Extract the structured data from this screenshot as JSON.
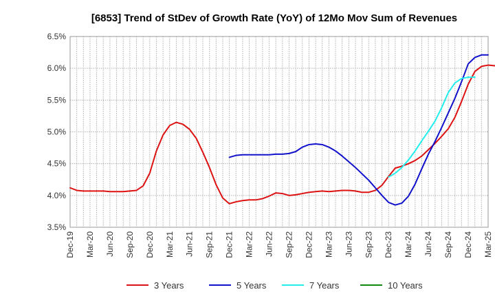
{
  "chart_data": {
    "type": "line",
    "title": "[6853]  Trend of StDev of Growth Rate (YoY) of 12Mo Mov Sum of Revenues",
    "xlabel": "",
    "ylabel": "",
    "ylim": [
      3.5,
      6.5
    ],
    "yticks": [
      "3.5%",
      "4.0%",
      "4.5%",
      "5.0%",
      "5.5%",
      "6.0%",
      "6.5%"
    ],
    "ytick_values": [
      3.5,
      4.0,
      4.5,
      5.0,
      5.5,
      6.0,
      6.5
    ],
    "xticks": [
      "Dec-19",
      "Mar-20",
      "Jun-20",
      "Sep-20",
      "Dec-20",
      "Mar-21",
      "Jun-21",
      "Sep-21",
      "Dec-21",
      "Mar-22",
      "Jun-22",
      "Sep-22",
      "Dec-22",
      "Mar-23",
      "Jun-23",
      "Sep-23",
      "Dec-23",
      "Mar-24",
      "Jun-24",
      "Sep-24",
      "Dec-24",
      "Mar-25"
    ],
    "x_start_month_index": 0,
    "grid": true,
    "legend_position": "bottom",
    "series": [
      {
        "name": "3 Years",
        "color": "#dd1111",
        "start": 0,
        "values": [
          4.12,
          4.08,
          4.07,
          4.07,
          4.07,
          4.07,
          4.06,
          4.06,
          4.06,
          4.07,
          4.08,
          4.15,
          4.35,
          4.7,
          4.95,
          5.1,
          5.15,
          5.12,
          5.04,
          4.9,
          4.68,
          4.44,
          4.17,
          3.96,
          3.87,
          3.9,
          3.92,
          3.93,
          3.93,
          3.95,
          3.99,
          4.04,
          4.03,
          4.0,
          4.01,
          4.03,
          4.05,
          4.06,
          4.07,
          4.06,
          4.07,
          4.08,
          4.08,
          4.07,
          4.05,
          4.05,
          4.08,
          4.16,
          4.3,
          4.43,
          4.46,
          4.5,
          4.55,
          4.62,
          4.72,
          4.82,
          4.93,
          5.05,
          5.23,
          5.48,
          5.75,
          5.95,
          6.03,
          6.05,
          6.04
        ]
      },
      {
        "name": "5 Years",
        "color": "#1111cc",
        "start": 24,
        "values": [
          4.6,
          4.63,
          4.64,
          4.64,
          4.64,
          4.64,
          4.64,
          4.65,
          4.65,
          4.66,
          4.69,
          4.76,
          4.8,
          4.81,
          4.8,
          4.76,
          4.7,
          4.62,
          4.53,
          4.44,
          4.34,
          4.24,
          4.12,
          4.0,
          3.89,
          3.85,
          3.88,
          3.99,
          4.18,
          4.42,
          4.65,
          4.85,
          5.07,
          5.3,
          5.53,
          5.79,
          6.07,
          6.17,
          6.21,
          6.21
        ]
      },
      {
        "name": "7 Years",
        "color": "#22eeee",
        "start": 48,
        "values": [
          4.29,
          4.35,
          4.44,
          4.56,
          4.7,
          4.86,
          5.01,
          5.17,
          5.38,
          5.62,
          5.77,
          5.84,
          5.86,
          5.86
        ]
      },
      {
        "name": "10 Years",
        "color": "#118811",
        "start": 0,
        "values": []
      }
    ]
  }
}
